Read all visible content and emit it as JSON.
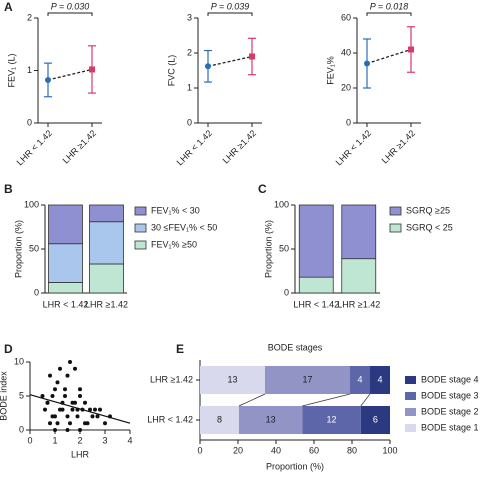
{
  "chart_data": [
    {
      "type": "errorbar",
      "label": "A",
      "categories": [
        "LHR < 1.42",
        "LHR ≥1.42"
      ],
      "ylabel": "FEV₁ (L)",
      "annotation": "P = 0.030",
      "values": [
        0.82,
        1.02
      ],
      "errors": [
        0.32,
        0.45
      ],
      "colors": [
        "#2a6db5",
        "#d93a6a"
      ],
      "ylim": [
        0,
        2
      ],
      "yticks": [
        0,
        1,
        2
      ]
    },
    {
      "type": "errorbar",
      "categories": [
        "LHR < 1.42",
        "LHR ≥1.42"
      ],
      "ylabel": "FVC (L)",
      "annotation": "P = 0.039",
      "values": [
        1.62,
        1.9
      ],
      "errors": [
        0.45,
        0.52
      ],
      "colors": [
        "#2a6db5",
        "#d93a6a"
      ],
      "ylim": [
        0,
        3
      ],
      "yticks": [
        0,
        1,
        2,
        3
      ]
    },
    {
      "type": "errorbar",
      "categories": [
        "LHR < 1.42",
        "LHR ≥1.42"
      ],
      "ylabel": "FEV₁%",
      "annotation": "P = 0.018",
      "values": [
        34,
        42
      ],
      "errors": [
        14,
        13
      ],
      "colors": [
        "#2a6db5",
        "#d93a6a"
      ],
      "ylim": [
        0,
        60
      ],
      "yticks": [
        0,
        20,
        40,
        60
      ]
    },
    {
      "type": "stacked-bar",
      "label": "B",
      "categories": [
        "LHR < 1.42",
        "LHR ≥1.42"
      ],
      "ylabel": "Proportion (%)",
      "ylim": [
        0,
        100
      ],
      "yticks": [
        0,
        50,
        100
      ],
      "series": [
        {
          "name": "FEV₁% ≥50",
          "color": "#bfe5d3",
          "values": [
            12,
            33
          ]
        },
        {
          "name": "30 ≤FEV₁% < 50",
          "color": "#a9c6ec",
          "values": [
            44,
            48
          ]
        },
        {
          "name": "FEV₁% < 30",
          "color": "#8e90d2",
          "values": [
            44,
            19
          ]
        }
      ]
    },
    {
      "type": "stacked-bar",
      "label": "C",
      "categories": [
        "LHR < 1.42",
        "LHR ≥1.42"
      ],
      "ylabel": "Proportion (%)",
      "ylim": [
        0,
        100
      ],
      "yticks": [
        0,
        50,
        100
      ],
      "series": [
        {
          "name": "SGRQ < 25",
          "color": "#bfe5d3",
          "values": [
            18,
            39
          ]
        },
        {
          "name": "SGRQ ≥25",
          "color": "#8e90d2",
          "values": [
            82,
            61
          ]
        }
      ]
    },
    {
      "type": "scatter",
      "label": "D",
      "xlabel": "LHR",
      "ylabel": "BODE index",
      "color": "#111111",
      "x": [
        0.5,
        0.6,
        0.7,
        0.8,
        0.9,
        1.0,
        1.0,
        1.1,
        1.2,
        1.2,
        1.3,
        1.4,
        1.5,
        1.5,
        1.6,
        1.7,
        1.8,
        1.9,
        2.0,
        2.0,
        2.1,
        2.2,
        2.3,
        2.5,
        2.6,
        2.8,
        3.0,
        3.2,
        0.8,
        1.0,
        1.3,
        1.6,
        1.9,
        2.2,
        2.4,
        0.7,
        1.1,
        1.4,
        1.7,
        2.0,
        2.7,
        0.9,
        1.5,
        1.8
      ],
      "values": [
        5,
        3,
        4,
        1,
        5,
        2,
        6,
        7,
        3,
        9,
        4,
        5,
        8,
        2,
        1,
        4,
        9,
        3,
        6,
        0,
        3,
        4,
        1,
        2,
        3,
        3,
        1,
        2,
        8,
        0,
        3,
        10,
        2,
        1,
        3,
        4,
        1,
        6,
        3,
        5,
        2,
        2,
        0,
        4
      ],
      "trend": {
        "x": [
          0,
          4
        ],
        "values": [
          5.2,
          1.0
        ]
      },
      "xlim": [
        0,
        4
      ],
      "xticks": [
        0,
        1,
        2,
        3,
        4
      ],
      "ylim": [
        0,
        10
      ],
      "yticks": [
        0,
        5,
        10
      ]
    },
    {
      "type": "stacked-barh",
      "label": "E",
      "title": "BODE stages",
      "xlabel": "Proportion (%)",
      "categories": [
        "LHR ≥1.42",
        "LHR < 1.42"
      ],
      "series": [
        {
          "name": "BODE stage 1",
          "color": "#d8d9ec",
          "values": [
            13,
            8
          ]
        },
        {
          "name": "BODE stage 2",
          "color": "#9294c6",
          "values": [
            17,
            13
          ]
        },
        {
          "name": "BODE stage 3",
          "color": "#5d66a8",
          "values": [
            4,
            12
          ]
        },
        {
          "name": "BODE stage 4",
          "color": "#2b3a80",
          "values": [
            4,
            6
          ]
        }
      ],
      "xlim": [
        0,
        100
      ],
      "xticks": [
        0,
        20,
        40,
        60,
        80,
        100
      ]
    }
  ]
}
